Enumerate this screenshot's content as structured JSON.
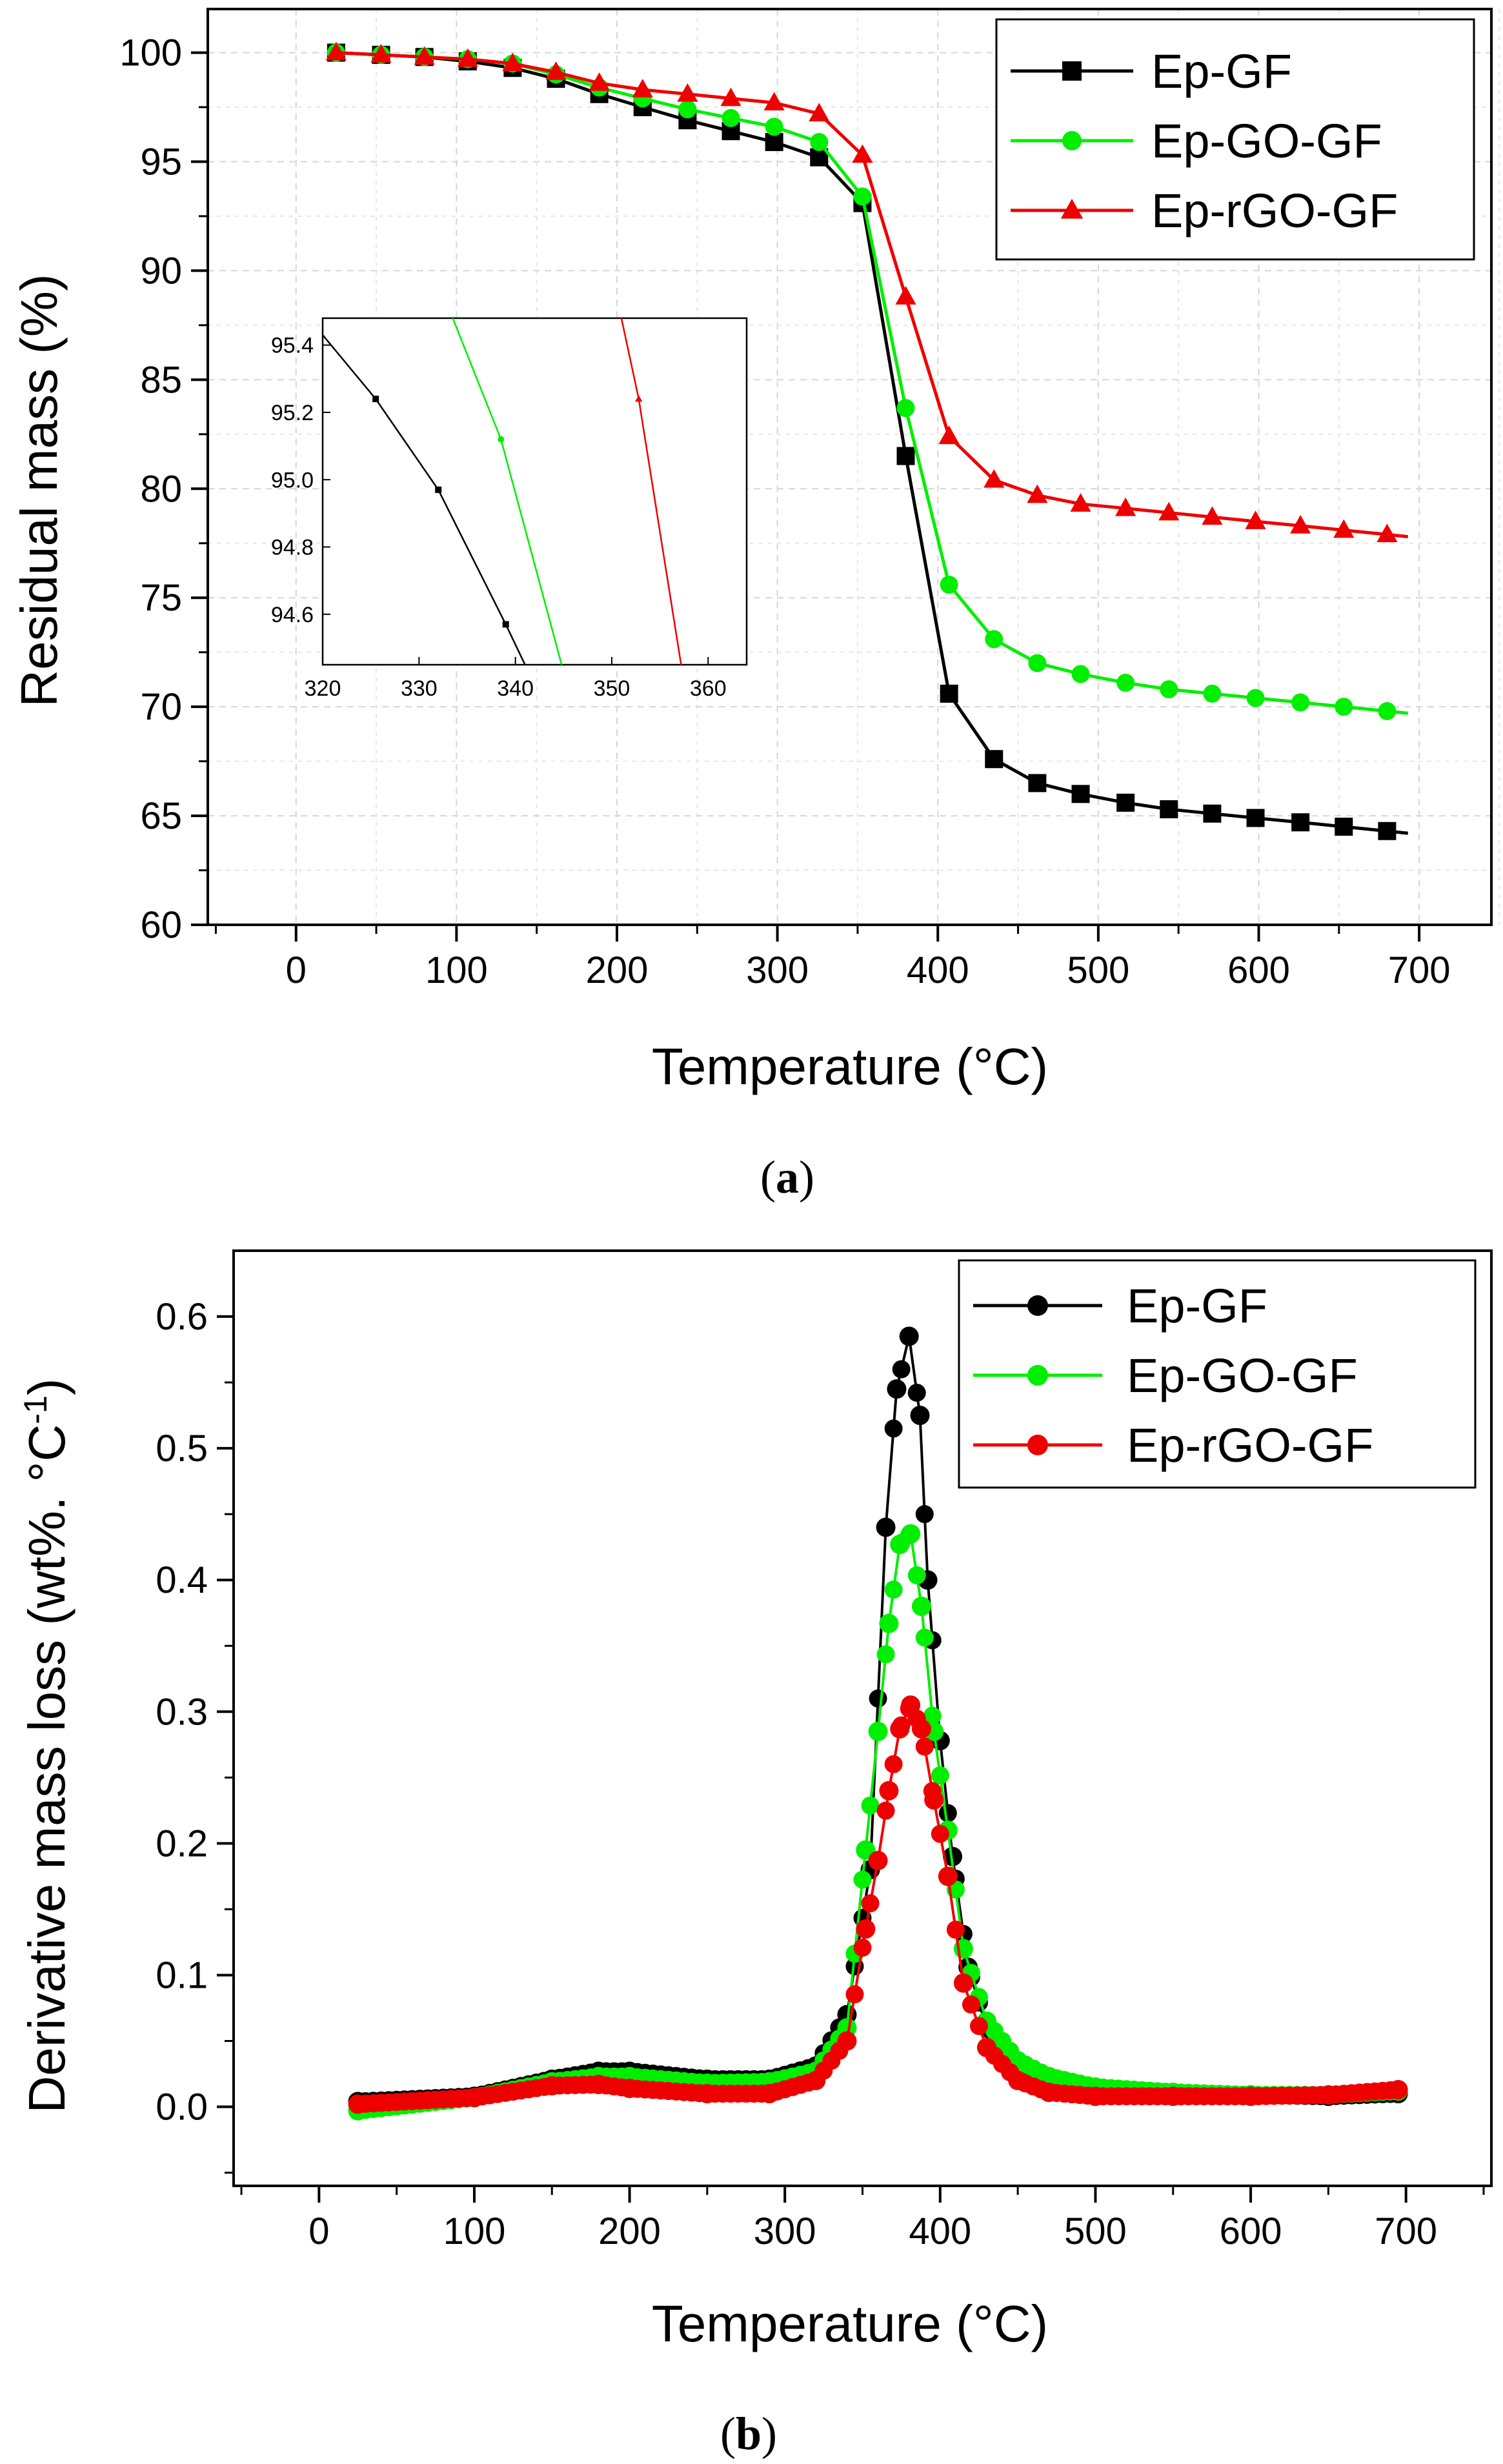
{
  "chart_data": [
    {
      "type": "line",
      "panel": "a",
      "panel_label": "a",
      "xlabel": "Temperature (°C)",
      "ylabel": "Residual mass (%)",
      "xlim": [
        -55,
        745
      ],
      "ylim": [
        60,
        102
      ],
      "xticks": [
        "0",
        "100",
        "200",
        "300",
        "400",
        "500",
        "600",
        "700"
      ],
      "yticks": [
        "60",
        "65",
        "70",
        "75",
        "80",
        "85",
        "90",
        "95",
        "100"
      ],
      "grid": true,
      "legend_position": "top-right",
      "series": [
        {
          "name": "Ep-GF",
          "color": "#000000",
          "marker": "square",
          "x": [
            25,
            53,
            80,
            107,
            135,
            162,
            189,
            216,
            244,
            271,
            298,
            326,
            353,
            380,
            407,
            435,
            462,
            489,
            517,
            544,
            571,
            598,
            626,
            653,
            680,
            693
          ],
          "y": [
            100,
            99.9,
            99.8,
            99.6,
            99.3,
            98.8,
            98.1,
            97.5,
            96.9,
            96.4,
            95.9,
            95.2,
            93.1,
            81.5,
            70.6,
            67.6,
            66.5,
            66.0,
            65.6,
            65.3,
            65.1,
            64.9,
            64.7,
            64.5,
            64.3,
            64.2
          ]
        },
        {
          "name": "Ep-GO-GF",
          "color": "#00ee00",
          "marker": "circle",
          "x": [
            25,
            53,
            80,
            107,
            135,
            162,
            189,
            216,
            244,
            271,
            298,
            326,
            353,
            380,
            407,
            435,
            462,
            489,
            517,
            544,
            571,
            598,
            626,
            653,
            680,
            693
          ],
          "y": [
            100,
            99.9,
            99.8,
            99.7,
            99.5,
            99.0,
            98.4,
            97.9,
            97.4,
            97.0,
            96.6,
            95.9,
            93.4,
            83.7,
            75.6,
            73.1,
            72.0,
            71.5,
            71.1,
            70.8,
            70.6,
            70.4,
            70.2,
            70.0,
            69.8,
            69.7
          ]
        },
        {
          "name": "Ep-rGO-GF",
          "color": "#ee0000",
          "marker": "triangle",
          "x": [
            25,
            53,
            80,
            107,
            135,
            162,
            189,
            216,
            244,
            271,
            298,
            326,
            353,
            380,
            407,
            435,
            462,
            489,
            517,
            544,
            571,
            598,
            626,
            653,
            680,
            693
          ],
          "y": [
            100,
            99.9,
            99.8,
            99.7,
            99.5,
            99.1,
            98.6,
            98.3,
            98.1,
            97.9,
            97.7,
            97.2,
            95.3,
            88.8,
            82.4,
            80.4,
            79.7,
            79.3,
            79.1,
            78.9,
            78.7,
            78.5,
            78.3,
            78.1,
            77.9,
            77.8
          ]
        }
      ],
      "inset": {
        "xlim": [
          320,
          364
        ],
        "ylim": [
          94.45,
          95.48
        ],
        "xticks": [
          "320",
          "330",
          "340",
          "350",
          "360"
        ],
        "yticks": [
          "94.6",
          "94.8",
          "95.0",
          "95.2",
          "95.4"
        ],
        "series": [
          {
            "name": "Ep-GF",
            "color": "#000000",
            "marker": "square",
            "x": [
              320,
              325.5,
              332,
              339,
              341
            ],
            "y": [
              95.43,
              95.24,
              94.97,
              94.57,
              94.45
            ]
          },
          {
            "name": "Ep-GO-GF",
            "color": "#00ee00",
            "marker": "circle",
            "x": [
              333.5,
              338.5,
              344.8
            ],
            "y": [
              95.48,
              95.12,
              94.45
            ]
          },
          {
            "name": "Ep-rGO-GF",
            "color": "#ee0000",
            "marker": "triangle",
            "x": [
              351,
              352.8,
              357.2
            ],
            "y": [
              95.48,
              95.24,
              94.45
            ]
          }
        ]
      }
    },
    {
      "type": "scatter",
      "panel": "b",
      "panel_label": "b",
      "xlabel": "Temperature (°C)",
      "ylabel": "Derivative mass loss (wt%. °C",
      "ylabel_superscript": "-1",
      "ylabel_end": ")",
      "xlim": [
        -55,
        755
      ],
      "ylim": [
        -0.06,
        0.65
      ],
      "xticks": [
        "0",
        "100",
        "200",
        "300",
        "400",
        "500",
        "600",
        "700"
      ],
      "yticks": [
        "0.0",
        "0.1",
        "0.2",
        "0.3",
        "0.4",
        "0.5",
        "0.6"
      ],
      "grid": false,
      "legend_position": "top-right",
      "series": [
        {
          "name": "Ep-GF",
          "color": "#000000",
          "marker": "circle",
          "x": [
            25,
            100,
            150,
            180,
            200,
            250,
            290,
            320,
            340,
            355,
            365,
            372,
            380,
            387,
            392,
            400,
            408,
            418,
            430,
            450,
            470,
            500,
            550,
            600,
            650,
            695
          ],
          "y": [
            0.004,
            0.008,
            0.021,
            0.027,
            0.027,
            0.021,
            0.021,
            0.031,
            0.07,
            0.18,
            0.44,
            0.545,
            0.585,
            0.525,
            0.4,
            0.278,
            0.19,
            0.106,
            0.06,
            0.03,
            0.02,
            0.013,
            0.01,
            0.009,
            0.008,
            0.01
          ]
        },
        {
          "name": "Ep-GO-GF",
          "color": "#00ee00",
          "marker": "circle",
          "x": [
            25,
            100,
            150,
            180,
            200,
            250,
            290,
            320,
            340,
            352,
            360,
            367,
            374,
            381,
            388,
            396,
            405,
            415,
            430,
            450,
            470,
            500,
            550,
            600,
            650,
            695
          ],
          "y": [
            -0.003,
            0.007,
            0.019,
            0.023,
            0.023,
            0.018,
            0.019,
            0.027,
            0.06,
            0.195,
            0.285,
            0.367,
            0.427,
            0.435,
            0.38,
            0.285,
            0.21,
            0.12,
            0.065,
            0.035,
            0.023,
            0.015,
            0.011,
            0.009,
            0.009,
            0.012
          ]
        },
        {
          "name": "Ep-rGO-GF",
          "color": "#ee0000",
          "marker": "circle",
          "x": [
            25,
            100,
            150,
            180,
            200,
            250,
            290,
            320,
            340,
            352,
            360,
            367,
            374,
            381,
            388,
            396,
            405,
            415,
            430,
            450,
            470,
            500,
            550,
            600,
            650,
            695
          ],
          "y": [
            0.002,
            0.007,
            0.016,
            0.017,
            0.014,
            0.01,
            0.01,
            0.02,
            0.05,
            0.135,
            0.187,
            0.24,
            0.287,
            0.305,
            0.287,
            0.233,
            0.175,
            0.094,
            0.045,
            0.02,
            0.011,
            0.008,
            0.008,
            0.008,
            0.009,
            0.013
          ]
        }
      ]
    }
  ]
}
